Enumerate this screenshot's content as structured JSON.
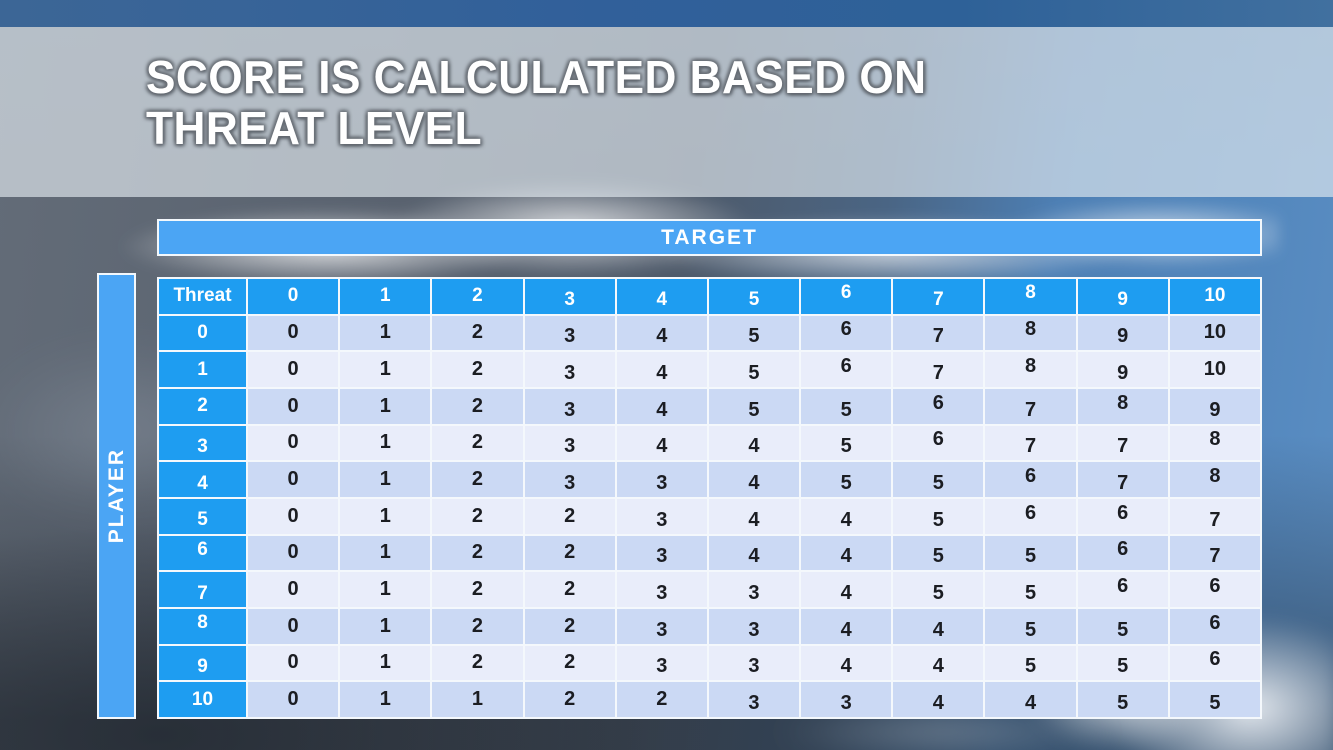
{
  "slide": {
    "title_line1": "SCORE IS CALCULATED BASED ON",
    "title_line2": "THREAT LEVEL"
  },
  "matrix": {
    "target_label": "TARGET",
    "player_label": "PLAYER",
    "corner_label": "Threat",
    "column_headers": [
      "0",
      "1",
      "2",
      "3",
      "4",
      "5",
      "6",
      "7",
      "8",
      "9",
      "10"
    ],
    "row_headers": [
      "0",
      "1",
      "2",
      "3",
      "4",
      "5",
      "6",
      "7",
      "8",
      "9",
      "10"
    ],
    "rows": [
      [
        0,
        1,
        2,
        3,
        4,
        5,
        6,
        7,
        8,
        9,
        10
      ],
      [
        0,
        1,
        2,
        3,
        4,
        5,
        6,
        7,
        8,
        9,
        10
      ],
      [
        0,
        1,
        2,
        3,
        4,
        5,
        5,
        6,
        7,
        8,
        9
      ],
      [
        0,
        1,
        2,
        3,
        4,
        4,
        5,
        6,
        7,
        7,
        8
      ],
      [
        0,
        1,
        2,
        3,
        3,
        4,
        5,
        5,
        6,
        7,
        8
      ],
      [
        0,
        1,
        2,
        2,
        3,
        4,
        4,
        5,
        6,
        6,
        7
      ],
      [
        0,
        1,
        2,
        2,
        3,
        4,
        4,
        5,
        5,
        6,
        7
      ],
      [
        0,
        1,
        2,
        2,
        3,
        3,
        4,
        5,
        5,
        6,
        6
      ],
      [
        0,
        1,
        2,
        2,
        3,
        3,
        4,
        4,
        5,
        5,
        6
      ],
      [
        0,
        1,
        2,
        2,
        3,
        3,
        4,
        4,
        5,
        5,
        6
      ],
      [
        0,
        1,
        1,
        2,
        2,
        3,
        3,
        4,
        4,
        5,
        5
      ]
    ]
  },
  "colors": {
    "header_cell_blue": "#1E9DF1",
    "axis_bar_blue": "#4BA5F4",
    "row_band_dark": "#CBD9F4",
    "row_band_light": "#E9EDFA",
    "grid_line": "#F4F8FC",
    "title_text": "#FFFFFF"
  }
}
